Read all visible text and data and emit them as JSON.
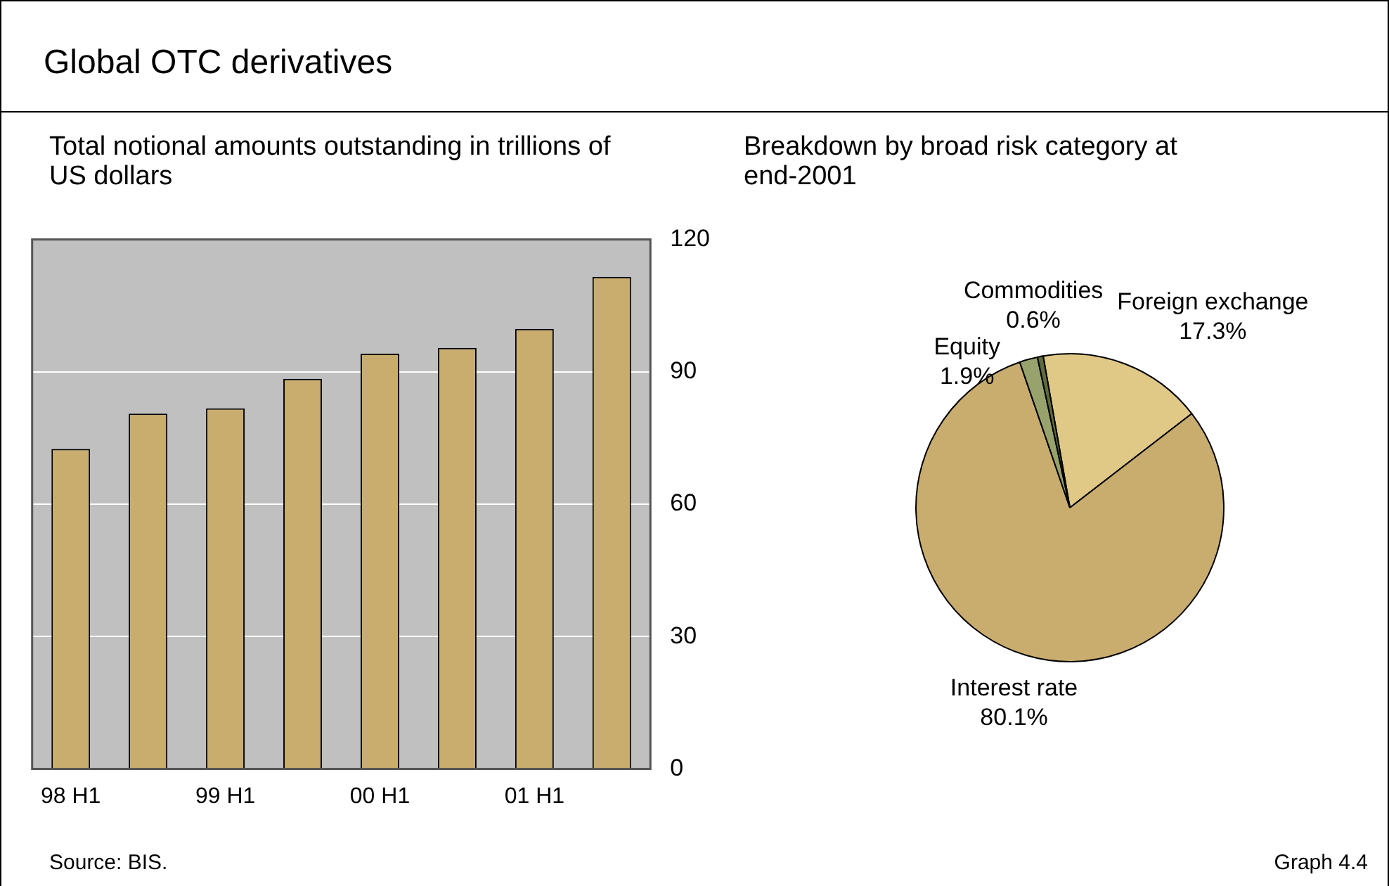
{
  "chart_data": [
    {
      "type": "bar",
      "title": "Global OTC derivatives",
      "subtitle": "Total notional amounts outstanding in trillions of US dollars",
      "categories": [
        "98 H1",
        null,
        "99 H1",
        null,
        "00 H1",
        null,
        "01 H1",
        null
      ],
      "values": [
        72.5,
        80.5,
        81.7,
        88.4,
        94.1,
        95.4,
        99.7,
        111.5
      ],
      "color": "#c9ad6e",
      "ylim": [
        0,
        120
      ],
      "yticks": [
        0,
        30,
        60,
        90,
        120
      ],
      "grid": "y",
      "legend": false,
      "annotations": [
        "Source: BIS."
      ]
    },
    {
      "type": "pie",
      "title": "Breakdown by broad risk category at end-2001",
      "categories": [
        "Foreign exchange",
        "Interest rate",
        "Equity",
        "Commodities"
      ],
      "values": [
        17.3,
        80.1,
        1.9,
        0.6
      ],
      "colors": [
        "#e0c987",
        "#c9ad6e",
        "#97a26c",
        "#5f6a3e"
      ],
      "value_labels": [
        "17.3%",
        "80.1%",
        "1.9%",
        "0.6%"
      ],
      "legend": false,
      "annotations": [
        "Graph 4.4"
      ]
    }
  ]
}
